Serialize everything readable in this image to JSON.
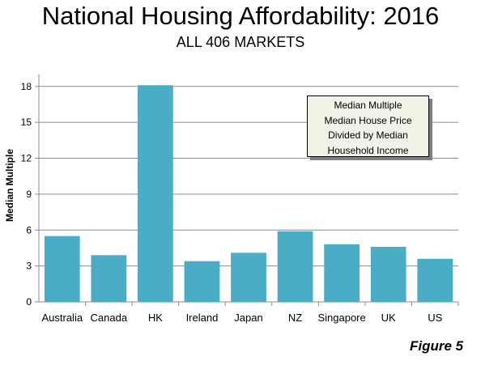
{
  "chart_data": {
    "type": "bar",
    "title": "National Housing Affordability: 2016",
    "subtitle": "ALL 406 MARKETS",
    "ylabel": "Median Multiple",
    "xlabel": "",
    "categories": [
      "Australia",
      "Canada",
      "HK",
      "Ireland",
      "Japan",
      "NZ",
      "Singapore",
      "UK",
      "US"
    ],
    "values": [
      5.5,
      3.9,
      18.1,
      3.4,
      4.1,
      5.9,
      4.8,
      4.6,
      3.6
    ],
    "ylim": [
      0,
      19
    ],
    "yticks": [
      0,
      3,
      6,
      9,
      12,
      15,
      18
    ],
    "grid": true,
    "bar_color": "#4bacc6",
    "annotation": [
      "Median Multiple",
      "Median House Price",
      "Divided by Median",
      "Household Income"
    ],
    "figure_label": "Figure 5"
  }
}
